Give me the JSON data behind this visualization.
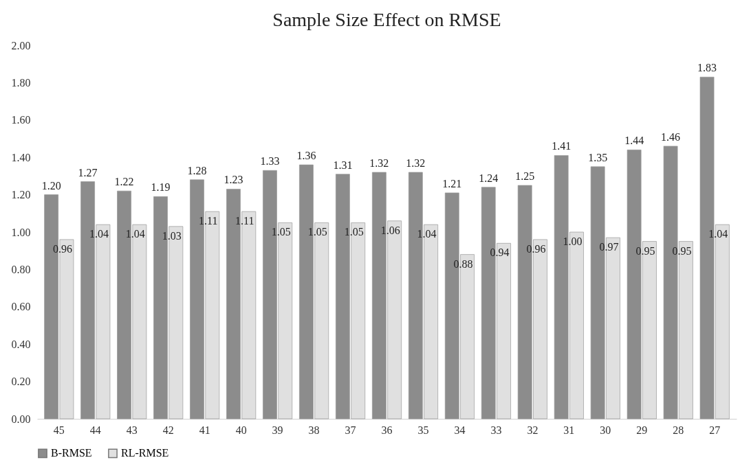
{
  "chart_data": {
    "type": "bar",
    "title": "Sample Size Effect on RMSE",
    "categories": [
      "45",
      "44",
      "43",
      "42",
      "41",
      "40",
      "39",
      "38",
      "37",
      "36",
      "35",
      "34",
      "33",
      "32",
      "31",
      "30",
      "29",
      "28",
      "27"
    ],
    "series": [
      {
        "name": "B-RMSE",
        "color": "#8c8c8c",
        "values": [
          1.2,
          1.27,
          1.22,
          1.19,
          1.28,
          1.23,
          1.33,
          1.36,
          1.31,
          1.32,
          1.32,
          1.21,
          1.24,
          1.25,
          1.41,
          1.35,
          1.44,
          1.46,
          1.83
        ],
        "value_labels": [
          "1.20",
          "1.27",
          "1.22",
          "1.19",
          "1.28",
          "1.23",
          "1.33",
          "1.36",
          "1.31",
          "1.32",
          "1.32",
          "1.21",
          "1.24",
          "1.25",
          "1.41",
          "1.35",
          "1.44",
          "1.46",
          "1.83"
        ]
      },
      {
        "name": "RL-RMSE",
        "color": "#e0e0e0",
        "values": [
          0.96,
          1.04,
          1.04,
          1.03,
          1.11,
          1.11,
          1.05,
          1.05,
          1.05,
          1.06,
          1.04,
          0.88,
          0.94,
          0.96,
          1.0,
          0.97,
          0.95,
          0.95,
          1.04
        ],
        "value_labels": [
          "0.96",
          "1.04",
          "1.04",
          "1.03",
          "1.11",
          "1.11",
          "1.05",
          "1.05",
          "1.05",
          "1.06",
          "1.04",
          "0.88",
          "0.94",
          "0.96",
          "1.00",
          "0.97",
          "0.95",
          "0.95",
          "1.04"
        ]
      }
    ],
    "ylim": [
      0,
      2
    ],
    "yticks": [
      {
        "value": 0,
        "label": "0.00"
      },
      {
        "value": 0.2,
        "label": "0.20"
      },
      {
        "value": 0.4,
        "label": "0.40"
      },
      {
        "value": 0.6,
        "label": "0.60"
      },
      {
        "value": 0.8,
        "label": "0.80"
      },
      {
        "value": 1,
        "label": "1.00"
      },
      {
        "value": 1.2,
        "label": "1.20"
      },
      {
        "value": 1.4,
        "label": "1.40"
      },
      {
        "value": 1.6,
        "label": "1.60"
      },
      {
        "value": 1.8,
        "label": "1.80"
      },
      {
        "value": 2,
        "label": "2.00"
      }
    ],
    "legend": "bottom"
  }
}
